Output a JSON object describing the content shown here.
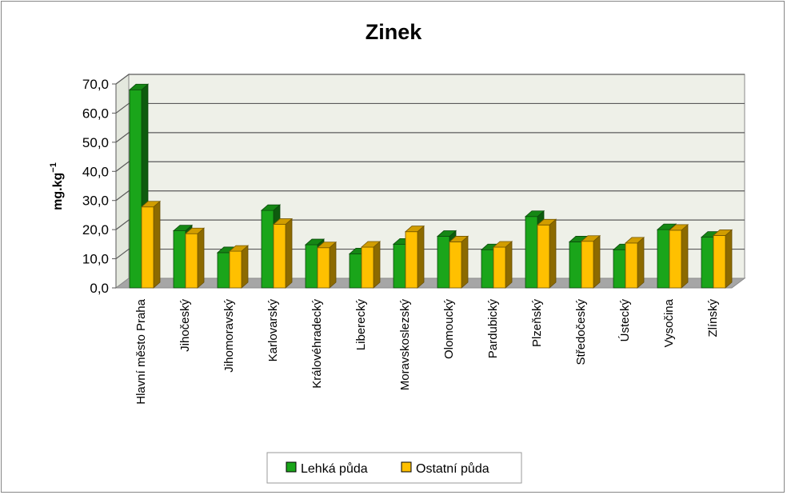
{
  "chart_data": {
    "type": "bar",
    "title": "Zinek",
    "ylabel": "mg.kg",
    "ylabel_sup": "−1",
    "xlabel": "",
    "ylim": [
      0,
      70
    ],
    "yticks": [
      "0,0",
      "10,0",
      "20,0",
      "30,0",
      "40,0",
      "50,0",
      "60,0",
      "70,0"
    ],
    "grid": true,
    "legend_position": "bottom",
    "categories": [
      "Hlavní město Praha",
      "Jihočeský",
      "Jihomoravský",
      "Karlovarský",
      "Královéhradecký",
      "Liberecký",
      "Moravskoslezský",
      "Olomoucký",
      "Pardubický",
      "Plzeňský",
      "Středočeský",
      "Ústecký",
      "Vysočina",
      "Zlínský"
    ],
    "series": [
      {
        "name": "Lehká půda",
        "color": "#1aa51a",
        "values": [
          68.0,
          19.6,
          12.1,
          26.6,
          14.8,
          11.7,
          15.0,
          17.7,
          13.1,
          24.5,
          15.8,
          13.1,
          20.0,
          17.4
        ]
      },
      {
        "name": "Ostatní půda",
        "color": "#ffc000",
        "values": [
          27.8,
          18.6,
          12.6,
          21.8,
          13.8,
          14.0,
          19.3,
          15.8,
          14.0,
          21.6,
          16.0,
          15.4,
          19.8,
          18.0
        ]
      }
    ]
  }
}
